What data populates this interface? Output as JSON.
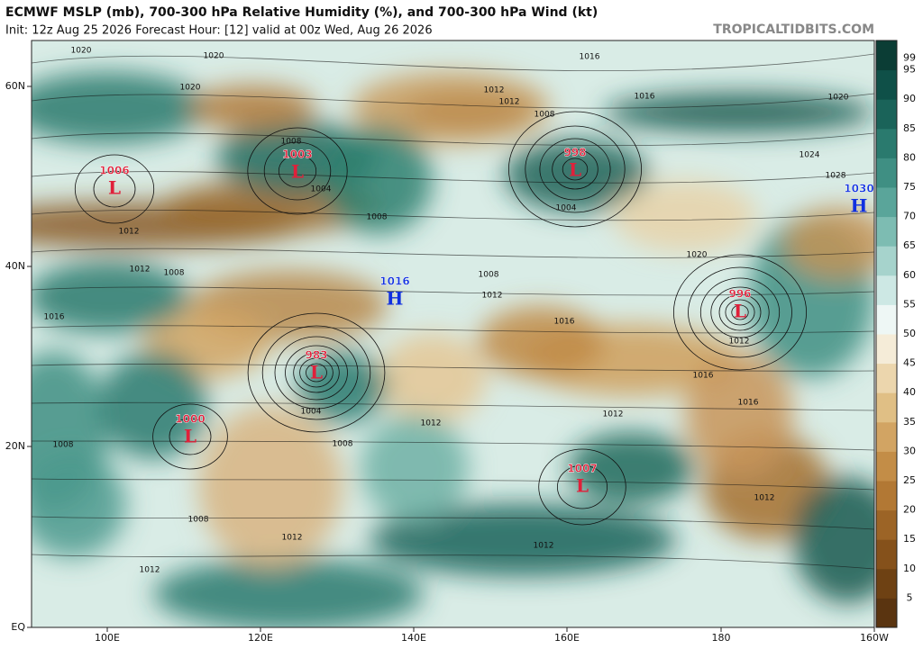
{
  "header": {
    "title": "ECMWF MSLP (mb), 700-300 hPa Relative Humidity (%), and 700-300 hPa Wind (kt)",
    "subtitle": "Init: 12z Aug 25 2026   Forecast Hour: [12]   valid at 00z Wed, Aug 26 2026",
    "source": "TROPICALTIDBITS.COM"
  },
  "lat_labels": [
    "60N",
    "40N",
    "20N",
    "EQ"
  ],
  "lon_labels": [
    "100E",
    "120E",
    "140E",
    "160E",
    "180",
    "160W"
  ],
  "colorbar": {
    "ticks": [
      5,
      10,
      15,
      20,
      25,
      30,
      35,
      40,
      45,
      50,
      55,
      60,
      65,
      70,
      75,
      80,
      85,
      90,
      95,
      99
    ],
    "colors": [
      "#5a3410",
      "#6e4113",
      "#85511b",
      "#9c6426",
      "#b27834",
      "#c38d47",
      "#d2a463",
      "#e0bf85",
      "#ecd6ad",
      "#f5ecd8",
      "#eef7f5",
      "#cde8e4",
      "#a6d3cc",
      "#7dbcb2",
      "#5aa59a",
      "#3f8f83",
      "#2a7a6e",
      "#1a6359",
      "#0f5048",
      "#0b3d35"
    ]
  },
  "centers": [
    {
      "letter": "L",
      "pressure": "1006"
    },
    {
      "letter": "L",
      "pressure": "1003"
    },
    {
      "letter": "L",
      "pressure": "998"
    },
    {
      "letter": "H",
      "pressure": "1030"
    },
    {
      "letter": "H",
      "pressure": "1016"
    },
    {
      "letter": "L",
      "pressure": "996"
    },
    {
      "letter": "L",
      "pressure": "983"
    },
    {
      "letter": "L",
      "pressure": "1000"
    },
    {
      "letter": "L",
      "pressure": "1007"
    }
  ],
  "isobar_labels": [
    "1020",
    "1020",
    "1020",
    "1016",
    "1016",
    "1020",
    "1012",
    "1008",
    "1008",
    "1004",
    "1004",
    "1024",
    "1028",
    "1012",
    "1008",
    "1012",
    "1008",
    "1008",
    "1012",
    "1016",
    "1012",
    "1016",
    "1016",
    "1004",
    "1012",
    "1012",
    "1008",
    "1008",
    "1012",
    "1008",
    "1012",
    "1012",
    "1012",
    "1020",
    "1016",
    "1012"
  ]
}
